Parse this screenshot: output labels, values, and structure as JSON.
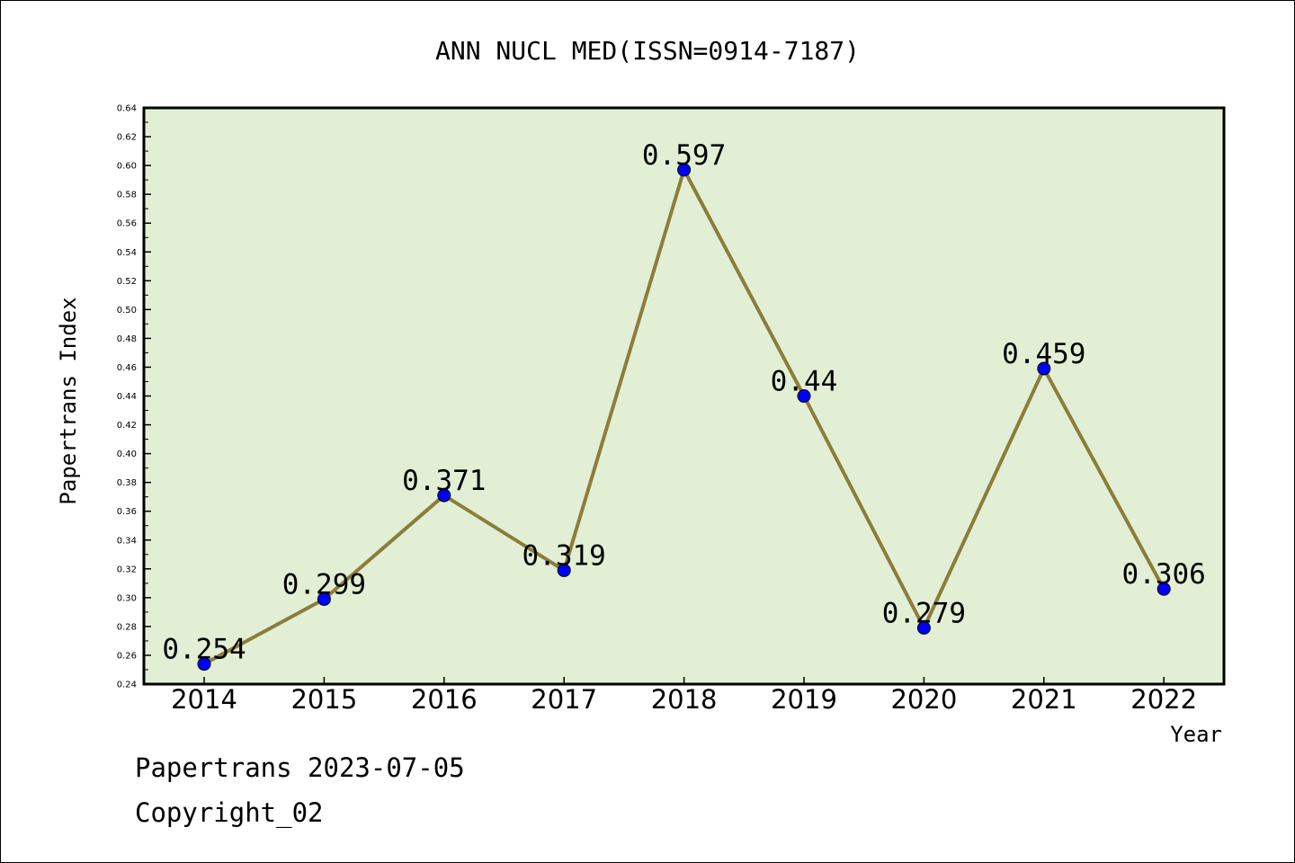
{
  "chart_data": {
    "type": "line",
    "title": "ANN NUCL MED(ISSN=0914-7187)",
    "xlabel": "Year",
    "ylabel": "Papertrans Index",
    "categories": [
      "2014",
      "2015",
      "2016",
      "2017",
      "2018",
      "2019",
      "2020",
      "2021",
      "2022"
    ],
    "values": [
      0.254,
      0.299,
      0.371,
      0.319,
      0.597,
      0.44,
      0.279,
      0.459,
      0.306
    ],
    "data_labels": [
      "0.254",
      "0.299",
      "0.371",
      "0.319",
      "0.597",
      "0.44",
      "0.279",
      "0.459",
      "0.306"
    ],
    "ylim": [
      0.24,
      0.64
    ],
    "yticks": [
      "0.24",
      "0.26",
      "0.28",
      "0.30",
      "0.32",
      "0.34",
      "0.36",
      "0.38",
      "0.40",
      "0.42",
      "0.44",
      "0.46",
      "0.48",
      "0.50",
      "0.52",
      "0.54",
      "0.56",
      "0.58",
      "0.60",
      "0.62",
      "0.64"
    ],
    "grid": false,
    "plot_background": "#e2efd5",
    "line_color": "#8b7d3a",
    "marker_color": "#0000ff"
  },
  "footer": {
    "line1": "Papertrans 2023-07-05",
    "line2": "Copyright_02"
  }
}
